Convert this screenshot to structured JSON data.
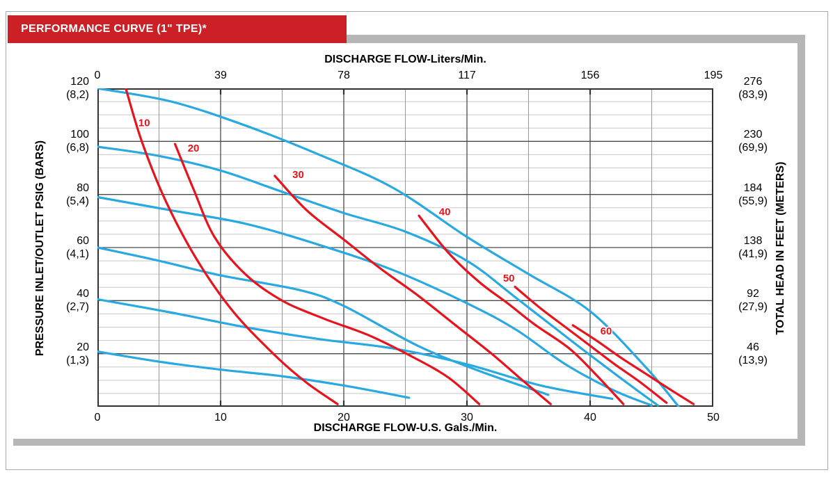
{
  "banner": {
    "title": "PERFORMANCE CURVE  (1\" TPE)*",
    "bg_color": "#cb2026"
  },
  "chart_data": {
    "type": "line",
    "title_top_axis": "DISCHARGE FLOW-Liters/Min.",
    "title_bottom_axis": "DISCHARGE FLOW-U.S. Gals./Min.",
    "y_left_label": "PRESSURE INLET/OUTLET PSIG (BARS)",
    "y_right_label": "TOTAL HEAD IN FEET (METERS)",
    "xlim": [
      0,
      50
    ],
    "ylim": [
      0,
      120
    ],
    "x_major_ticks": [
      0,
      10,
      20,
      30,
      40,
      50
    ],
    "x_minor_ticks": [
      5,
      15,
      25,
      35,
      45
    ],
    "x_top_tick_labels": [
      "0",
      "39",
      "78",
      "117",
      "156",
      "195"
    ],
    "x_bottom_tick_labels": [
      "0",
      "10",
      "20",
      "30",
      "40",
      "50"
    ],
    "y_major_step": 20,
    "y_minor_step": 5,
    "grid": "on",
    "y_left_ticks": [
      {
        "psi": 120,
        "main": "120",
        "sub": "(8,2)"
      },
      {
        "psi": 100,
        "main": "100",
        "sub": "(6,8)"
      },
      {
        "psi": 80,
        "main": "80",
        "sub": "(5,4)"
      },
      {
        "psi": 60,
        "main": "60",
        "sub": "(4,1)"
      },
      {
        "psi": 40,
        "main": "40",
        "sub": "(2,7)"
      },
      {
        "psi": 20,
        "main": "20",
        "sub": "(1,3)"
      }
    ],
    "y_right_ticks": [
      {
        "psi": 120,
        "main": "276",
        "sub": "(83,9)"
      },
      {
        "psi": 100,
        "main": "230",
        "sub": "(69,9)"
      },
      {
        "psi": 80,
        "main": "184",
        "sub": "(55,9)"
      },
      {
        "psi": 60,
        "main": "138",
        "sub": "(41,9)"
      },
      {
        "psi": 40,
        "main": "92",
        "sub": "(27,9)"
      },
      {
        "psi": 20,
        "main": "46",
        "sub": "(13,9)"
      }
    ],
    "colors": {
      "flow_curve": "#29a9e1",
      "air_curve": "#e8131d",
      "grid_major": "#4a4a4a",
      "grid_minor_v": "#989898",
      "grid_minor_h": "#c8c8c8",
      "frame": "#333333"
    },
    "flow_curves": [
      {
        "points": [
          [
            0,
            120
          ],
          [
            6,
            115
          ],
          [
            12,
            106
          ],
          [
            18,
            95
          ],
          [
            24,
            82.5
          ],
          [
            30,
            64
          ],
          [
            35,
            50
          ],
          [
            40,
            36
          ],
          [
            44.5,
            15
          ],
          [
            47.2,
            0
          ]
        ]
      },
      {
        "points": [
          [
            0,
            98
          ],
          [
            5,
            94.5
          ],
          [
            10,
            89
          ],
          [
            15,
            81
          ],
          [
            20,
            73
          ],
          [
            25,
            66
          ],
          [
            30,
            55
          ],
          [
            34,
            41
          ],
          [
            39,
            23
          ],
          [
            43,
            9
          ],
          [
            45.5,
            0.5
          ]
        ]
      },
      {
        "points": [
          [
            0,
            79
          ],
          [
            6,
            74
          ],
          [
            12,
            69
          ],
          [
            18,
            61
          ],
          [
            24,
            51.5
          ],
          [
            30,
            39
          ],
          [
            34,
            29
          ],
          [
            38,
            16
          ],
          [
            42,
            6
          ],
          [
            45,
            0.5
          ]
        ]
      },
      {
        "points": [
          [
            0,
            60
          ],
          [
            5,
            55
          ],
          [
            10,
            49.5
          ],
          [
            16.4,
            44
          ],
          [
            20,
            38
          ],
          [
            26,
            23
          ],
          [
            31,
            13.5
          ],
          [
            36.6,
            4.5
          ]
        ]
      },
      {
        "points": [
          [
            0,
            40.5
          ],
          [
            6,
            35.5
          ],
          [
            12,
            30
          ],
          [
            18,
            25.5
          ],
          [
            24,
            22
          ],
          [
            30,
            16
          ],
          [
            36,
            8
          ],
          [
            41.8,
            3
          ]
        ]
      },
      {
        "points": [
          [
            0,
            20.8
          ],
          [
            5,
            17
          ],
          [
            10,
            14
          ],
          [
            15,
            11.5
          ],
          [
            20,
            8
          ],
          [
            25.3,
            3.4
          ]
        ]
      }
    ],
    "air_consumption_curves": [
      {
        "label": "10",
        "label_pos": [
          3.8,
          107
        ],
        "points": [
          [
            2.3,
            120
          ],
          [
            3.6,
            100
          ],
          [
            5.5,
            78
          ],
          [
            8,
            56
          ],
          [
            11,
            36
          ],
          [
            14.5,
            19
          ],
          [
            17,
            9
          ],
          [
            19.5,
            1
          ]
        ]
      },
      {
        "label": "20",
        "label_pos": [
          7.8,
          97.5
        ],
        "points": [
          [
            6.3,
            99
          ],
          [
            7.8,
            82
          ],
          [
            9.5,
            64
          ],
          [
            12,
            50
          ],
          [
            15,
            40
          ],
          [
            18.5,
            33
          ],
          [
            22,
            27
          ],
          [
            25.5,
            19
          ],
          [
            28.5,
            11
          ],
          [
            31,
            1
          ]
        ]
      },
      {
        "label": "30",
        "label_pos": [
          16.3,
          87.5
        ],
        "points": [
          [
            14.4,
            87
          ],
          [
            17,
            74
          ],
          [
            20,
            63
          ],
          [
            23,
            52
          ],
          [
            26,
            42
          ],
          [
            29,
            31
          ],
          [
            32,
            20
          ],
          [
            34.5,
            10
          ],
          [
            36.8,
            1
          ]
        ]
      },
      {
        "label": "40",
        "label_pos": [
          28.2,
          73.5
        ],
        "points": [
          [
            26.1,
            72
          ],
          [
            28.5,
            58
          ],
          [
            31,
            47
          ],
          [
            33.3,
            39
          ],
          [
            35.5,
            31
          ],
          [
            38.3,
            22
          ],
          [
            40.5,
            12
          ],
          [
            42.7,
            1
          ]
        ]
      },
      {
        "label": "50",
        "label_pos": [
          33.4,
          48.5
        ],
        "points": [
          [
            33.9,
            45.2
          ],
          [
            36,
            37
          ],
          [
            38,
            30
          ],
          [
            40,
            23
          ],
          [
            42,
            16
          ],
          [
            44,
            9.5
          ],
          [
            46.2,
            1.5
          ]
        ]
      },
      {
        "label": "60",
        "label_pos": [
          41.3,
          28.5
        ],
        "points": [
          [
            38.6,
            30.7
          ],
          [
            40.5,
            25
          ],
          [
            42.5,
            18.5
          ],
          [
            44.5,
            12.5
          ],
          [
            46.5,
            6.5
          ],
          [
            48.4,
            1
          ]
        ]
      }
    ]
  }
}
